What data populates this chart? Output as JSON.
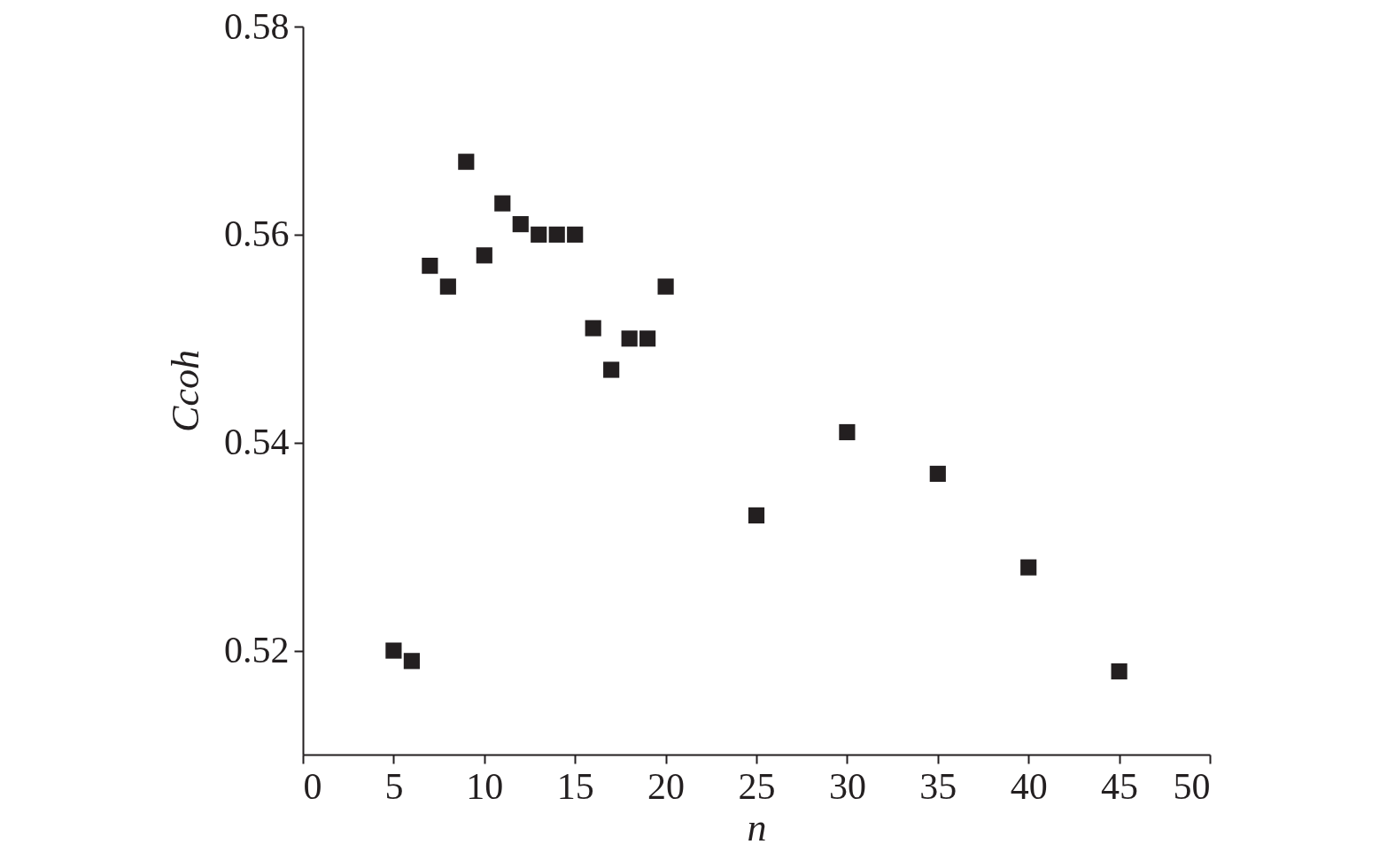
{
  "chart_data": {
    "type": "scatter",
    "xlabel": "n",
    "ylabel": "Ccoh",
    "x": [
      5,
      6,
      7,
      8,
      9,
      10,
      11,
      12,
      13,
      14,
      15,
      16,
      17,
      18,
      19,
      20,
      25,
      30,
      35,
      40,
      45
    ],
    "series": [
      {
        "color": "#231f20",
        "values": [
          0.52,
          0.519,
          0.557,
          0.555,
          0.567,
          0.558,
          0.563,
          0.561,
          0.56,
          0.56,
          0.56,
          0.551,
          0.547,
          0.55,
          0.55,
          0.555,
          0.533,
          0.541,
          0.537,
          0.528,
          0.518
        ]
      }
    ],
    "xlim": [
      0,
      50
    ],
    "xticks": [
      0,
      5,
      10,
      15,
      20,
      25,
      30,
      35,
      40,
      45,
      50
    ],
    "ylim": [
      0.51,
      0.58
    ],
    "yticks": [
      0.52,
      0.54,
      0.56,
      0.58
    ],
    "marker": "square",
    "grid": false
  }
}
